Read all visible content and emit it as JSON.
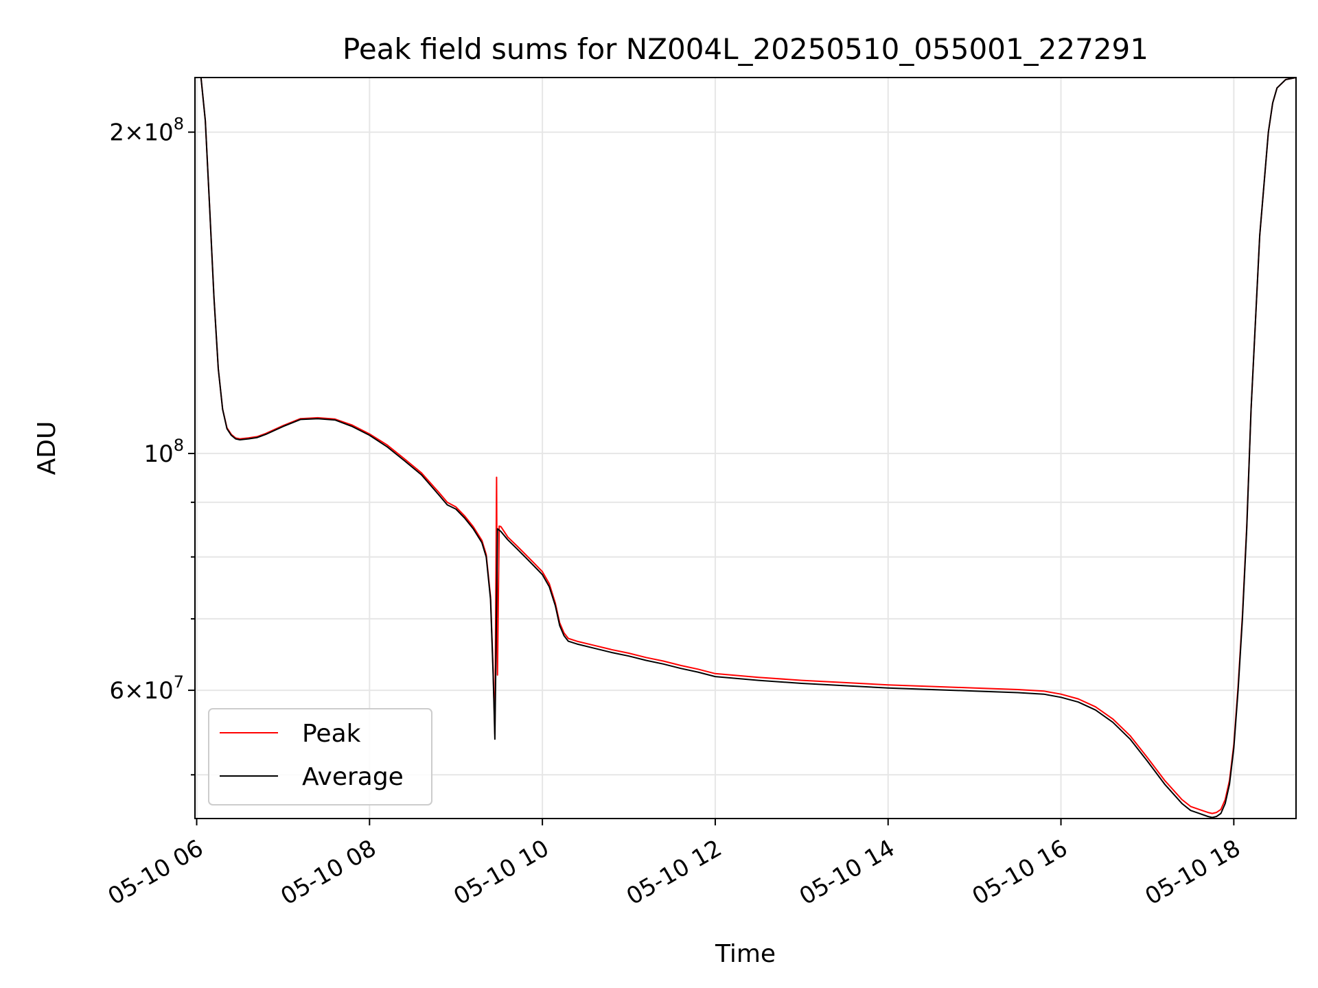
{
  "chart_data": {
    "type": "line",
    "title": "Peak field sums for NZ004L_20250510_055001_227291",
    "xlabel": "Time",
    "ylabel": "ADU",
    "yscale": "log",
    "xlim": [
      5.98,
      18.72
    ],
    "ylim": [
      45500000,
      225000000
    ],
    "grid": true,
    "legend_position": "lower-left",
    "x_unit": "hours since 2025-05-10 00:00",
    "x_ticks": [
      {
        "value": 6,
        "label": "05-10 06"
      },
      {
        "value": 8,
        "label": "05-10 08"
      },
      {
        "value": 10,
        "label": "05-10 10"
      },
      {
        "value": 12,
        "label": "05-10 12"
      },
      {
        "value": 14,
        "label": "05-10 14"
      },
      {
        "value": 16,
        "label": "05-10 16"
      },
      {
        "value": 18,
        "label": "05-10 18"
      }
    ],
    "y_major_ticks": [
      {
        "value": 200000000,
        "mant": "2",
        "base": "10",
        "exp": "8"
      },
      {
        "value": 100000000,
        "mant": "",
        "base": "10",
        "exp": "8"
      },
      {
        "value": 60000000,
        "mant": "6",
        "base": "10",
        "exp": "7"
      }
    ],
    "y_minor_ticks": [
      50000000,
      70000000,
      80000000,
      90000000
    ],
    "series": [
      {
        "name": "Average",
        "color": "#000000",
        "x": [
          6.0,
          6.05,
          6.1,
          6.15,
          6.2,
          6.25,
          6.3,
          6.35,
          6.4,
          6.45,
          6.5,
          6.6,
          6.7,
          6.8,
          7.0,
          7.2,
          7.4,
          7.6,
          7.8,
          8.0,
          8.2,
          8.4,
          8.6,
          8.8,
          8.9,
          9.0,
          9.1,
          9.2,
          9.3,
          9.35,
          9.4,
          9.43,
          9.45,
          9.46,
          9.48,
          9.52,
          9.6,
          9.7,
          9.8,
          9.9,
          10.0,
          10.08,
          10.15,
          10.2,
          10.25,
          10.3,
          10.4,
          10.6,
          10.8,
          11.0,
          11.2,
          11.4,
          11.6,
          11.8,
          12.0,
          12.5,
          13.0,
          13.5,
          14.0,
          14.5,
          15.0,
          15.5,
          15.8,
          16.0,
          16.2,
          16.4,
          16.6,
          16.8,
          17.0,
          17.2,
          17.4,
          17.5,
          17.6,
          17.7,
          17.75,
          17.8,
          17.85,
          17.9,
          17.95,
          18.0,
          18.05,
          18.1,
          18.15,
          18.2,
          18.3,
          18.4,
          18.45,
          18.5,
          18.6,
          18.72
        ],
        "values": [
          225000000,
          225000000,
          205000000,
          170000000,
          140000000,
          120000000,
          110000000,
          105500000,
          104000000,
          103200000,
          103000000,
          103200000,
          103500000,
          104200000,
          106000000,
          107600000,
          107800000,
          107500000,
          106000000,
          104000000,
          101500000,
          98500000,
          95500000,
          91500000,
          89500000,
          88700000,
          87000000,
          85000000,
          82500000,
          80000000,
          73000000,
          62000000,
          54000000,
          62000000,
          85000000,
          84500000,
          83000000,
          81500000,
          80000000,
          78500000,
          77000000,
          75000000,
          72000000,
          69000000,
          67500000,
          66700000,
          66300000,
          65700000,
          65100000,
          64600000,
          64000000,
          63500000,
          62900000,
          62400000,
          61800000,
          61300000,
          60900000,
          60600000,
          60300000,
          60100000,
          59900000,
          59700000,
          59500000,
          59100000,
          58500000,
          57500000,
          56000000,
          54000000,
          51500000,
          49000000,
          47000000,
          46300000,
          46000000,
          45700000,
          45600000,
          45700000,
          46000000,
          47000000,
          49000000,
          53000000,
          60000000,
          70000000,
          85000000,
          110000000,
          160000000,
          200000000,
          213000000,
          220000000,
          224000000,
          225000000
        ]
      },
      {
        "name": "Peak",
        "color": "#ff0000",
        "x": [
          6.0,
          6.05,
          6.1,
          6.15,
          6.2,
          6.25,
          6.3,
          6.35,
          6.4,
          6.45,
          6.5,
          6.6,
          6.7,
          6.8,
          7.0,
          7.2,
          7.4,
          7.6,
          7.8,
          8.0,
          8.2,
          8.4,
          8.6,
          8.8,
          8.9,
          9.0,
          9.1,
          9.2,
          9.3,
          9.35,
          9.4,
          9.43,
          9.45,
          9.47,
          9.48,
          9.5,
          9.52,
          9.6,
          9.7,
          9.8,
          9.9,
          10.0,
          10.08,
          10.15,
          10.2,
          10.25,
          10.3,
          10.4,
          10.6,
          10.8,
          11.0,
          11.2,
          11.4,
          11.6,
          11.8,
          12.0,
          12.5,
          13.0,
          13.5,
          14.0,
          14.5,
          15.0,
          15.5,
          15.8,
          16.0,
          16.2,
          16.4,
          16.6,
          16.8,
          17.0,
          17.2,
          17.4,
          17.5,
          17.6,
          17.7,
          17.75,
          17.8,
          17.85,
          17.9,
          17.95,
          18.0,
          18.05,
          18.1,
          18.15,
          18.2,
          18.3,
          18.4,
          18.45,
          18.5,
          18.6,
          18.72
        ],
        "values": [
          225000000,
          225000000,
          205000000,
          170000000,
          140000000,
          120000000,
          110000000,
          105700000,
          104200000,
          103400000,
          103200000,
          103400000,
          103700000,
          104400000,
          106200000,
          107800000,
          108000000,
          107700000,
          106300000,
          104300000,
          101900000,
          98900000,
          95900000,
          92000000,
          90000000,
          89100000,
          87400000,
          85400000,
          82900000,
          80400000,
          73400000,
          62500000,
          54600000,
          95000000,
          62000000,
          85500000,
          85400000,
          83500000,
          82000000,
          80500000,
          79000000,
          77500000,
          75500000,
          72400000,
          69400000,
          67900000,
          67100000,
          66700000,
          66100000,
          65500000,
          65000000,
          64400000,
          63900000,
          63300000,
          62800000,
          62200000,
          61700000,
          61300000,
          61000000,
          60700000,
          60500000,
          60300000,
          60100000,
          59900000,
          59500000,
          58900000,
          57900000,
          56400000,
          54400000,
          51900000,
          49400000,
          47400000,
          46700000,
          46400000,
          46100000,
          46000000,
          46100000,
          46400000,
          47400000,
          49400000,
          53400000,
          60500000,
          70500000,
          85500000,
          110000000,
          160000000,
          200000000,
          213000000,
          220000000,
          224000000,
          225000000
        ]
      }
    ],
    "legend": [
      {
        "label": "Peak",
        "color": "#ff0000"
      },
      {
        "label": "Average",
        "color": "#000000"
      }
    ]
  }
}
